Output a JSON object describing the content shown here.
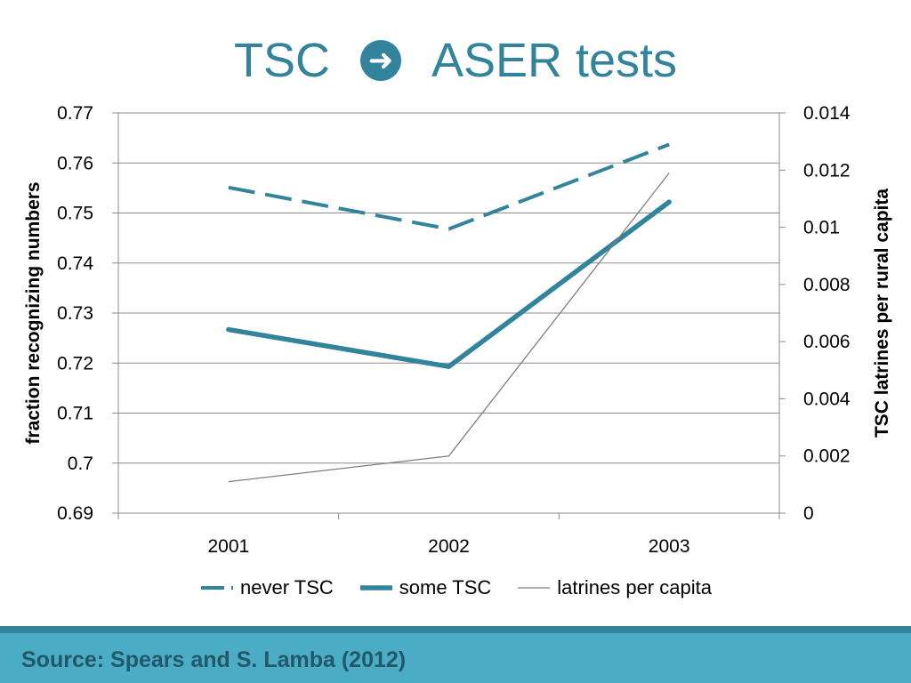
{
  "slide": {
    "title_left": "TSC",
    "title_arrow_icon": "circled-right-arrow",
    "title_right": "ASER tests",
    "source": "Source: Spears and S. Lamba (2012)"
  },
  "colors": {
    "accent": "#31849b",
    "latrines": "#7f7f7f",
    "footer_band": "#4bacc6",
    "footer_text": "#215968"
  },
  "chart_data": {
    "type": "line",
    "title": "",
    "categories": [
      "2001",
      "2002",
      "2003"
    ],
    "ylabel": "fraction recognizing numbers",
    "y2label": "TSC latrines per rural capita",
    "ylim": [
      0.69,
      0.77
    ],
    "y2lim": [
      0,
      0.014
    ],
    "yticks": [
      "0.69",
      "0.7",
      "0.71",
      "0.72",
      "0.73",
      "0.74",
      "0.75",
      "0.76",
      "0.77"
    ],
    "y2ticks": [
      "0",
      "0.002",
      "0.004",
      "0.006",
      "0.008",
      "0.01",
      "0.012",
      "0.014"
    ],
    "grid": true,
    "legend_position": "bottom",
    "series": [
      {
        "name": "never TSC",
        "axis": "left",
        "style": "dashed",
        "values": [
          0.7551,
          0.7468,
          0.7637
        ]
      },
      {
        "name": "some TSC",
        "axis": "left",
        "style": "thick",
        "values": [
          0.7267,
          0.7193,
          0.7522
        ]
      },
      {
        "name": "latrines per capita",
        "axis": "right",
        "style": "thin",
        "values": [
          0.0011,
          0.002,
          0.0119
        ]
      }
    ]
  }
}
